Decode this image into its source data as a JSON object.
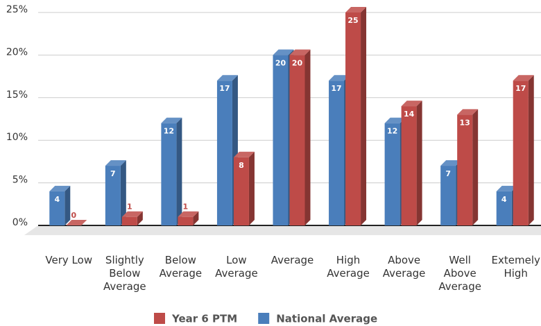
{
  "chart_data": {
    "type": "bar3d",
    "categories": [
      "Very Low",
      "Slightly Below Average",
      "Below Average",
      "Low Average",
      "Average",
      "High Average",
      "Above Average",
      "Well Above Average",
      "Extemely High"
    ],
    "series": [
      {
        "name": "Year 6 PTM",
        "color": "#be4b48",
        "values": [
          0,
          1,
          1,
          8,
          20,
          25,
          14,
          13,
          17
        ]
      },
      {
        "name": "National Average",
        "color": "#4a7ebb",
        "values": [
          4,
          7,
          12,
          17,
          20,
          17,
          12,
          7,
          4
        ]
      }
    ],
    "ylim": [
      0,
      25
    ],
    "yticks": [
      {
        "value": 0,
        "label": "0%"
      },
      {
        "value": 5,
        "label": "5%"
      },
      {
        "value": 10,
        "label": "10%"
      },
      {
        "value": 15,
        "label": "15%"
      },
      {
        "value": 20,
        "label": "20%"
      },
      {
        "value": 25,
        "label": "25%"
      }
    ],
    "grid": true
  }
}
